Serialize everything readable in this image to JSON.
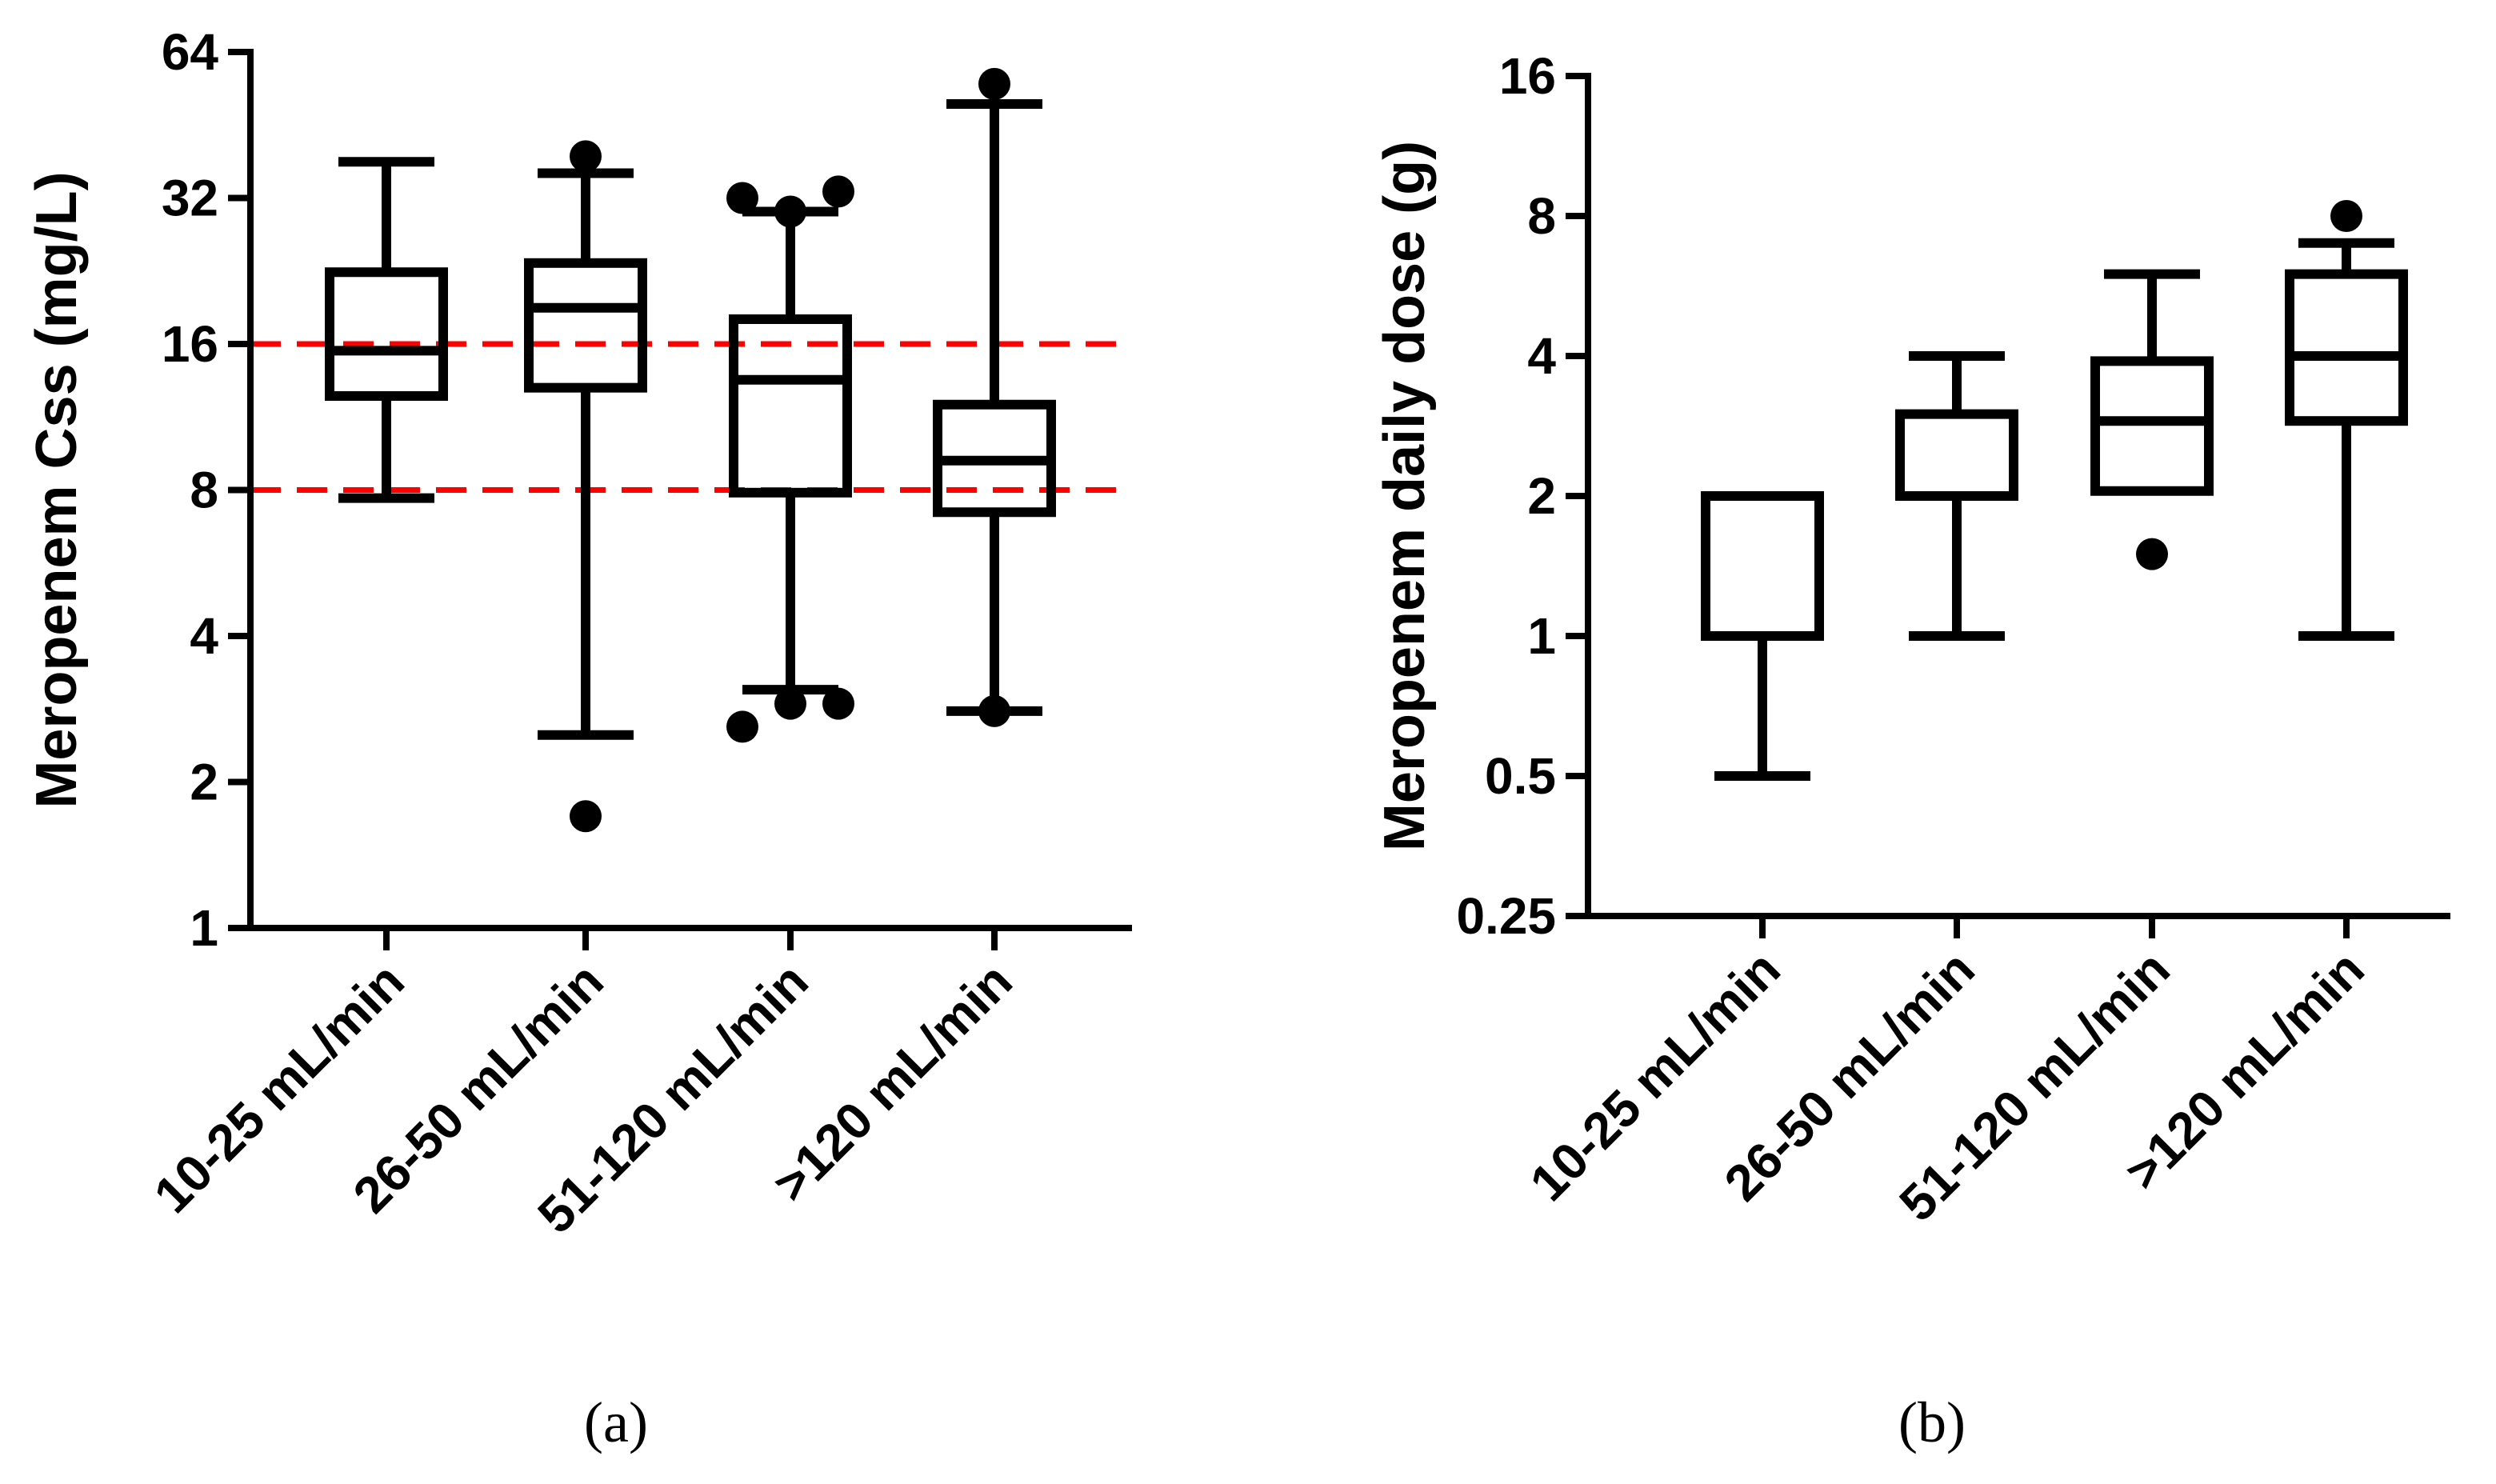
{
  "chart_data": [
    {
      "type": "box",
      "panel_label": "(a)",
      "ylabel": "Meropenem Css (mg/L)",
      "xlabel": "",
      "yscale": "log2",
      "ylim": [
        1,
        64
      ],
      "yticks": [
        1,
        2,
        4,
        8,
        16,
        32,
        64
      ],
      "ytick_labels": [
        "1",
        "2",
        "4",
        "8",
        "16",
        "32",
        "64"
      ],
      "reference_lines": [
        {
          "y": 16,
          "color": "#ff0000",
          "style": "dashed"
        },
        {
          "y": 8,
          "color": "#ff0000",
          "style": "dashed"
        }
      ],
      "categories": [
        "10-25 mL/min",
        "26-50 mL/min",
        "51-120 mL/min",
        ">120 mL/min"
      ],
      "boxes": [
        {
          "category": "10-25 mL/min",
          "whisker_low": 7.7,
          "q1": 12.5,
          "median": 15.5,
          "q3": 22.5,
          "whisker_high": 38,
          "outliers": []
        },
        {
          "category": "26-50 mL/min",
          "whisker_low": 2.5,
          "q1": 13,
          "median": 19,
          "q3": 23.5,
          "whisker_high": 36,
          "outliers": [
            1.7,
            39
          ]
        },
        {
          "category": "51-120 mL/min",
          "whisker_low": 3.1,
          "q1": 7.9,
          "median": 13.5,
          "q3": 18,
          "whisker_high": 30,
          "outliers": [
            2.6,
            2.9,
            2.9,
            32,
            33,
            30
          ]
        },
        {
          "category": ">120 mL/min",
          "whisker_low": 2.8,
          "q1": 7.2,
          "median": 9.2,
          "q3": 12,
          "whisker_high": 50,
          "outliers": [
            2.8,
            55
          ]
        }
      ]
    },
    {
      "type": "box",
      "panel_label": "(b)",
      "ylabel": "Meropenem daily dose (g)",
      "xlabel": "",
      "yscale": "log2",
      "ylim": [
        0.25,
        16
      ],
      "yticks": [
        0.25,
        0.5,
        1,
        2,
        4,
        8,
        16
      ],
      "ytick_labels": [
        "0.25",
        "0.5",
        "1",
        "2",
        "4",
        "8",
        "16"
      ],
      "reference_lines": [],
      "categories": [
        "10-25 mL/min",
        "26-50 mL/min",
        "51-120 mL/min",
        ">120 mL/min"
      ],
      "boxes": [
        {
          "category": "10-25 mL/min",
          "whisker_low": 0.5,
          "q1": 1,
          "median": 1,
          "q3": 2,
          "whisker_high": 2,
          "outliers": []
        },
        {
          "category": "26-50 mL/min",
          "whisker_low": 1,
          "q1": 2,
          "median": 2,
          "q3": 3,
          "whisker_high": 4,
          "outliers": []
        },
        {
          "category": "51-120 mL/min",
          "whisker_low": 2.05,
          "q1": 2.05,
          "median": 2.9,
          "q3": 3.9,
          "whisker_high": 6,
          "outliers": [
            1.5
          ]
        },
        {
          "category": ">120 mL/min",
          "whisker_low": 1,
          "q1": 2.9,
          "median": 4,
          "q3": 6,
          "whisker_high": 7,
          "outliers": [
            8
          ]
        }
      ]
    }
  ]
}
